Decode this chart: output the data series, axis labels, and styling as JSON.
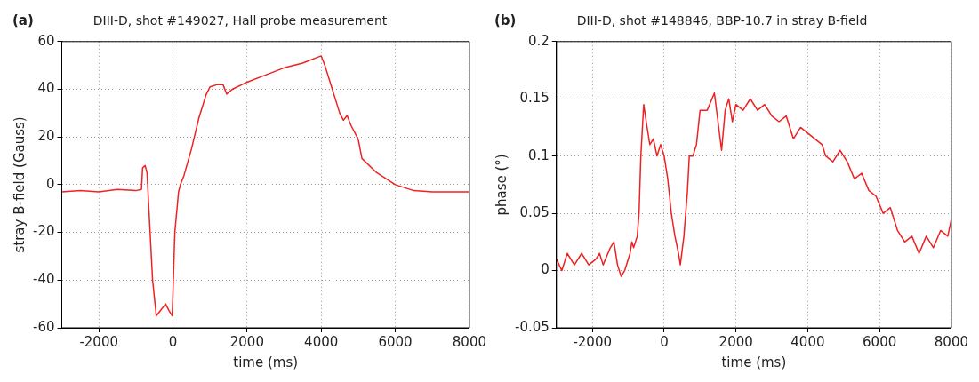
{
  "chart_data": [
    {
      "type": "line",
      "title": "DIII-D, shot #149027, Hall probe measurement",
      "xlabel": "time (ms)",
      "ylabel": "stray B-field (Gauss)",
      "annotations": [
        "(a)"
      ],
      "xlim": [
        -3000,
        8000
      ],
      "xticks": [
        -2000,
        0,
        2000,
        4000,
        6000,
        8000
      ],
      "ylim": [
        -60,
        60
      ],
      "yticks": [
        -60,
        -40,
        -20,
        0,
        20,
        40,
        60
      ],
      "grid": true,
      "x": [
        -3000,
        -2500,
        -2000,
        -1500,
        -1000,
        -850,
        -820,
        -750,
        -700,
        -650,
        -550,
        -450,
        -350,
        -200,
        -100,
        -20,
        0,
        50,
        150,
        200,
        300,
        500,
        700,
        900,
        1000,
        1200,
        1350,
        1450,
        1600,
        2000,
        2500,
        3000,
        3500,
        4000,
        4100,
        4300,
        4500,
        4600,
        4700,
        4800,
        5000,
        5100,
        5500,
        6000,
        6500,
        7000,
        7500,
        8000
      ],
      "series": [
        {
          "color": "#ee2222",
          "values": [
            -3,
            -2.5,
            -3,
            -2,
            -2.5,
            -2,
            7,
            8,
            5,
            -10,
            -40,
            -55,
            -53,
            -50,
            -53,
            -55,
            -45,
            -20,
            -3,
            0,
            4,
            15,
            28,
            38,
            41,
            42,
            42,
            38,
            40,
            43,
            46,
            49,
            51,
            54,
            50,
            40,
            30,
            27,
            29,
            25,
            19,
            11,
            5,
            0,
            -2.5,
            -3,
            -3,
            -3
          ]
        }
      ]
    },
    {
      "type": "line",
      "title": "DIII-D, shot #148846, BBP-10.7 in stray B-field",
      "xlabel": "time (ms)",
      "ylabel": "phase (°)",
      "annotations": [
        "(b)"
      ],
      "xlim": [
        -3000,
        8000
      ],
      "xticks": [
        -2000,
        0,
        2000,
        4000,
        6000,
        8000
      ],
      "ylim": [
        -0.05,
        0.2
      ],
      "yticks": [
        -0.05,
        0,
        0.05,
        0.1,
        0.15,
        0.2
      ],
      "grid": true,
      "x": [
        -3000,
        -2850,
        -2700,
        -2500,
        -2300,
        -2100,
        -1900,
        -1800,
        -1700,
        -1500,
        -1400,
        -1300,
        -1200,
        -1100,
        -950,
        -900,
        -850,
        -750,
        -700,
        -650,
        -570,
        -500,
        -400,
        -300,
        -200,
        -100,
        0,
        100,
        200,
        300,
        400,
        450,
        550,
        650,
        700,
        800,
        900,
        1000,
        1200,
        1400,
        1500,
        1600,
        1700,
        1800,
        1900,
        2000,
        2200,
        2400,
        2600,
        2800,
        3000,
        3200,
        3400,
        3600,
        3800,
        4000,
        4200,
        4400,
        4500,
        4700,
        4900,
        5100,
        5300,
        5500,
        5700,
        5900,
        6100,
        6300,
        6500,
        6700,
        6900,
        7100,
        7300,
        7500,
        7700,
        7900,
        8000
      ],
      "series": [
        {
          "color": "#ee2222",
          "values": [
            0.01,
            0.0,
            0.015,
            0.005,
            0.015,
            0.005,
            0.01,
            0.015,
            0.005,
            0.02,
            0.025,
            0.005,
            -0.005,
            0.0,
            0.015,
            0.025,
            0.02,
            0.03,
            0.05,
            0.1,
            0.145,
            0.13,
            0.11,
            0.115,
            0.1,
            0.11,
            0.1,
            0.08,
            0.05,
            0.03,
            0.015,
            0.005,
            0.03,
            0.07,
            0.1,
            0.1,
            0.11,
            0.14,
            0.14,
            0.155,
            0.13,
            0.105,
            0.14,
            0.15,
            0.13,
            0.145,
            0.14,
            0.15,
            0.14,
            0.145,
            0.135,
            0.13,
            0.135,
            0.115,
            0.125,
            0.12,
            0.115,
            0.11,
            0.1,
            0.095,
            0.105,
            0.095,
            0.08,
            0.085,
            0.07,
            0.065,
            0.05,
            0.055,
            0.035,
            0.025,
            0.03,
            0.015,
            0.03,
            0.02,
            0.035,
            0.03,
            0.045
          ]
        }
      ]
    }
  ]
}
